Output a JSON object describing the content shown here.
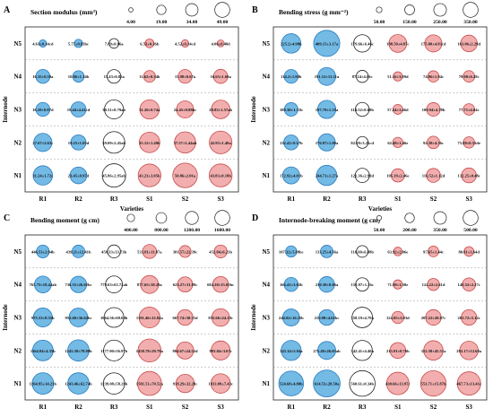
{
  "chart_data": {
    "type": "bubble",
    "shared": {
      "rows": [
        "N5",
        "N4",
        "N3",
        "N2",
        "N1"
      ],
      "cols": [
        "R1",
        "R2",
        "R3",
        "S1",
        "S2",
        "S3"
      ],
      "xlabel": "Varieties",
      "ylabel": "Internode",
      "colors": {
        "R_fill": "#5aaee0",
        "R_stroke": "#2a7cc0",
        "S_fill": "#f0a0a0",
        "S_stroke": "#c84a4a",
        "R3_fill": "#ffffff",
        "R3_stroke": "#222222"
      }
    },
    "panels": [
      {
        "letter": "A",
        "title": "Section modulus (mm³)",
        "legend_values": [
          4.0,
          19.0,
          34.0,
          49.0
        ],
        "legend_labels": [
          "4.00",
          "19.00",
          "34.00",
          "49.00"
        ],
        "values": [
          [
            4.61,
            5.77,
            7.89,
            6.53,
            4.52,
            4.06
          ],
          [
            16.35,
            10.86,
            15.43,
            11.62,
            15.98,
            16.65
          ],
          [
            16.29,
            19.44,
            30.31,
            31.26,
            24.45,
            28.85
          ],
          [
            27.67,
            19.25,
            39.09,
            35.12,
            37.57,
            42.95
          ],
          [
            31.24,
            23.45,
            45.86,
            43.23,
            50.86,
            43.83
          ]
        ],
        "labels": [
          [
            "4.61±0.14cd",
            "5.77±0.83bc",
            "7.89±0.06a",
            "6.53±0.36b",
            "4.52±0.14cd",
            "4.06±0.48d"
          ],
          [
            "16.35±0.59a",
            "10.86±1.14b",
            "15.43±0.85a",
            "11.62±0.34b",
            "15.98±0.67a",
            "16.65±1.69a"
          ],
          [
            "16.29±0.87d",
            "19.44±4.41cd",
            "30.31±0.79ab",
            "31.26±0.74a",
            "24.45±0.88bc",
            "28.85±1.57ab"
          ],
          [
            "27.67±2.63c",
            "19.25±1.05d",
            "39.09±2.45ab",
            "35.12±1.49b",
            "37.57±1.44ab",
            "42.95±1.48a"
          ],
          [
            "31.24±1.72c",
            "23.45±0.97d",
            "45.86±2.95ab",
            "43.23±3.05b",
            "50.86±2.01a",
            "43.83±0.18b"
          ]
        ]
      },
      {
        "letter": "B",
        "title": "Bending stress (g mm⁻²)",
        "legend_values": [
          50.0,
          150.0,
          250.0,
          350.0
        ],
        "legend_labels": [
          "50.00",
          "150.00",
          "250.00",
          "350.00"
        ],
        "values": [
          [
            225.2,
            409.15,
            179.66,
            188.5,
            175.0,
            163.06
          ],
          [
            114.2,
            191.12,
            87.24,
            51.16,
            74.96,
            79.9
          ],
          [
            109.3,
            197.79,
            114.52,
            57.24,
            109.94,
            77.71
          ],
          [
            132.41,
            176.97,
            82.08,
            62.48,
            92.38,
            75.88
          ],
          [
            172.92,
            244.71,
            121.36,
            105.19,
            116.52,
            132.25
          ]
        ],
        "labels": [
          [
            "225.2±4.98b",
            "409.15±3.17a",
            "179.66±6.46c",
            "188.50±4.87c",
            "175.00±4.83cd",
            "163.06±2.29d"
          ],
          [
            "114.2±1.98b",
            "191.12±13.11a",
            "87.24±4.06c",
            "51.16±3.09d",
            "74.96±1.94c",
            "79.90±6.28c"
          ],
          [
            "109.30±1.31b",
            "197.79±1.35a",
            "114.52±0.60b",
            "57.24±1.46d",
            "109.94±4.78b",
            "77.71±4.04c"
          ],
          [
            "132.41±9.17b",
            "176.97±1.00a",
            "82.08±3.25cd",
            "62.48±1.46e",
            "92.38±4.36c",
            "75.88±0.51de"
          ],
          [
            "172.92±4.01b",
            "244.71±1.27a",
            "121.36±2.99d",
            "105.19±2.46e",
            "116.52±1.12d",
            "132.25±0.48c"
          ]
        ]
      },
      {
        "letter": "C",
        "title": "Bending moment (g cm)",
        "legend_values": [
          400.0,
          800.0,
          1200.0,
          1600.0
        ],
        "legend_labels": [
          "400.00",
          "800.00",
          "1200.00",
          "1600.00"
        ],
        "values": [
          [
            446.53,
            439.21,
            458.33,
            533.81,
            381.57,
            452.84
          ],
          [
            765.75,
            736.55,
            779.63,
            877.65,
            623.27,
            684.2
          ],
          [
            975.53,
            952.6,
            1064.56,
            1191.46,
            667.74,
            855.66
          ],
          [
            1164.84,
            1245.38,
            1177.9,
            1438.78,
            804.67,
            993.04
          ],
          [
            1264.95,
            1243.46,
            1239.08,
            1581.51,
            918.29,
            1033.09
          ]
        ],
        "labels": [
          [
            "446.53±2.94b",
            "439.21±12.41b",
            "458.33±33.73b",
            "533.81±11.87a",
            "381.57±22.39c",
            "452.84±6.23b"
          ],
          [
            "765.75±18.44ab",
            "736.55±26.02bc",
            "779.63±63.72ab",
            "877.65±38.29a",
            "623.27±31.89c",
            "684.20±15.05bc"
          ],
          [
            "975.53±8.35b",
            "952.60±36.62bc",
            "1064.56±69.08b",
            "1191.46±12.84a",
            "667.74±30.35d",
            "855.66±24.18c"
          ],
          [
            "1164.84±4.35b",
            "1245.38±78.98b",
            "1177.90±56.97b",
            "1438.78±29.79a",
            "804.67±24.52d",
            "993.04±3.67c"
          ],
          [
            "1264.95±14.23b",
            "1243.46±62.74b",
            "1239.08±58.28b",
            "1581.51±70.52a",
            "918.29±32.28c",
            "1033.09±7.43c"
          ]
        ]
      },
      {
        "letter": "D",
        "title": "Internode-breaking moment (g cm)",
        "legend_values": [
          50.0,
          200.0,
          350.0,
          500.0
        ],
        "legend_labels": [
          "50.00",
          "200.00",
          "350.00",
          "500.00"
        ],
        "values": [
          [
            107.32,
            133.25,
            116.6,
            63.92,
            97.65,
            80.01
          ],
          [
            166.41,
            210.3,
            150.97,
            71.9,
            124.22,
            148.52
          ],
          [
            244.02,
            210.98,
            358.19,
            124.05,
            207.22,
            203.72
          ],
          [
            343.14,
            275.49,
            342.41,
            213.91,
            322.38,
            292.17
          ],
          [
            524.68,
            614.53,
            560.61,
            430.66,
            553.71,
            467.73
          ]
        ],
        "labels": [
          [
            "107.32±5.89bc",
            "133.25±4.56a",
            "116.60±6.88b",
            "63.92±2.06e",
            "97.65±1.44c",
            "80.01±3.64d"
          ],
          [
            "166.41±3.02b",
            "210.30±8.06a",
            "150.97±1.36c",
            "71.90±1.38e",
            "124.22±2.61d",
            "148.52±2.27c"
          ],
          [
            "244.02±16.11b",
            "210.98±4.61bc",
            "358.19±4.79a",
            "124.05±3.03d",
            "207.22±20.87c",
            "203.72±5.12c"
          ],
          [
            "343.14±5.94a",
            "275.49±26.05ab",
            "342.41±4.40a",
            "213.91±0.76b",
            "322.38±45.51a",
            "292.17±12.68a"
          ],
          [
            "524.68±4.80b",
            "614.53±28.58a",
            "560.61±0.34b",
            "430.66±13.97c",
            "553.71±15.87b",
            "467.73±13.41c"
          ]
        ]
      }
    ]
  }
}
